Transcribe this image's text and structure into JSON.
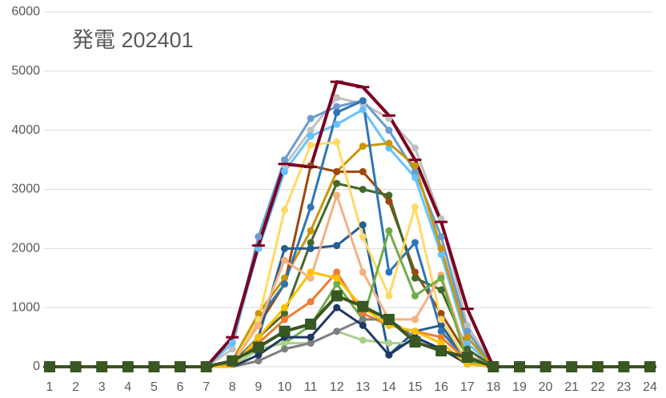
{
  "chart_data": {
    "type": "line",
    "title": "発電 202401",
    "categories": [
      1,
      2,
      3,
      4,
      5,
      6,
      7,
      8,
      9,
      10,
      11,
      12,
      13,
      14,
      15,
      16,
      17,
      18,
      19,
      20,
      21,
      22,
      23,
      24
    ],
    "ylim": [
      0,
      6000
    ],
    "yticks": [
      0,
      1000,
      2000,
      3000,
      4000,
      5000,
      6000
    ],
    "grid": true,
    "series": [
      {
        "color": "#c0c0c0",
        "marker": "circle",
        "values": [
          0,
          0,
          0,
          0,
          0,
          0,
          0,
          300,
          2200,
          3400,
          4000,
          4550,
          4450,
          4200,
          3700,
          2500,
          700,
          0,
          0,
          0,
          0,
          0,
          0,
          0
        ]
      },
      {
        "color": "#6a9bd1",
        "marker": "circle",
        "values": [
          0,
          0,
          0,
          0,
          0,
          0,
          0,
          400,
          2200,
          3500,
          4200,
          4400,
          4500,
          4000,
          3300,
          2200,
          600,
          0,
          0,
          0,
          0,
          0,
          0,
          0
        ]
      },
      {
        "color": "#66c2ff",
        "marker": "circle",
        "values": [
          0,
          0,
          0,
          0,
          0,
          0,
          0,
          400,
          2000,
          3300,
          3900,
          4100,
          4350,
          3700,
          3200,
          1900,
          400,
          0,
          0,
          0,
          0,
          0,
          0,
          0
        ]
      },
      {
        "color": "#c99700",
        "marker": "circle",
        "values": [
          0,
          0,
          0,
          0,
          0,
          0,
          0,
          100,
          900,
          1500,
          2300,
          3300,
          3730,
          3780,
          3400,
          2000,
          500,
          0,
          0,
          0,
          0,
          0,
          0,
          0
        ]
      },
      {
        "color": "#9e480e",
        "marker": "circle",
        "values": [
          0,
          0,
          0,
          0,
          0,
          0,
          0,
          100,
          700,
          1400,
          3400,
          3300,
          3300,
          2800,
          1600,
          900,
          200,
          0,
          0,
          0,
          0,
          0,
          0,
          0
        ]
      },
      {
        "color": "#43682b",
        "marker": "circle",
        "values": [
          0,
          0,
          0,
          0,
          0,
          0,
          0,
          50,
          500,
          900,
          2100,
          3100,
          3000,
          2900,
          1500,
          1300,
          300,
          0,
          0,
          0,
          0,
          0,
          0,
          0
        ]
      },
      {
        "color": "#255e91",
        "marker": "circle",
        "values": [
          0,
          0,
          0,
          0,
          0,
          0,
          0,
          50,
          500,
          2000,
          2000,
          2050,
          2400,
          200,
          600,
          700,
          100,
          0,
          0,
          0,
          0,
          0,
          0,
          0
        ]
      },
      {
        "color": "#2e75b6",
        "marker": "circle",
        "values": [
          0,
          0,
          0,
          0,
          0,
          0,
          0,
          50,
          800,
          1400,
          2700,
          4300,
          4500,
          1600,
          2100,
          600,
          100,
          0,
          0,
          0,
          0,
          0,
          0,
          0
        ]
      },
      {
        "color": "#ffd966",
        "marker": "circle",
        "values": [
          0,
          0,
          0,
          0,
          0,
          0,
          0,
          50,
          800,
          2650,
          3750,
          3800,
          2200,
          1200,
          2700,
          800,
          100,
          0,
          0,
          0,
          0,
          0,
          0,
          0
        ]
      },
      {
        "color": "#f4b183",
        "marker": "circle",
        "values": [
          0,
          0,
          0,
          0,
          0,
          0,
          0,
          50,
          700,
          1800,
          1500,
          2900,
          1600,
          800,
          800,
          1550,
          200,
          0,
          0,
          0,
          0,
          0,
          0,
          0
        ]
      },
      {
        "color": "#ed7d31",
        "marker": "circle",
        "values": [
          0,
          0,
          0,
          0,
          0,
          0,
          0,
          50,
          400,
          800,
          1100,
          1600,
          900,
          700,
          600,
          500,
          100,
          0,
          0,
          0,
          0,
          0,
          0,
          0
        ]
      },
      {
        "color": "#70ad47",
        "marker": "circle",
        "values": [
          0,
          0,
          0,
          0,
          0,
          0,
          0,
          0,
          300,
          400,
          700,
          1400,
          800,
          2300,
          1200,
          1500,
          100,
          0,
          0,
          0,
          0,
          0,
          0,
          0
        ]
      },
      {
        "color": "#a9d18e",
        "marker": "circle",
        "values": [
          0,
          0,
          0,
          0,
          0,
          0,
          0,
          0,
          300,
          400,
          400,
          600,
          450,
          400,
          400,
          300,
          50,
          0,
          0,
          0,
          0,
          0,
          0,
          0
        ]
      },
      {
        "color": "#7f7f7f",
        "marker": "circle",
        "values": [
          0,
          0,
          0,
          0,
          0,
          0,
          0,
          0,
          100,
          300,
          400,
          600,
          800,
          800,
          500,
          300,
          50,
          0,
          0,
          0,
          0,
          0,
          0,
          0
        ]
      },
      {
        "color": "#1f3864",
        "marker": "circle",
        "values": [
          0,
          0,
          0,
          0,
          0,
          0,
          0,
          0,
          200,
          500,
          500,
          1000,
          700,
          200,
          500,
          300,
          50,
          0,
          0,
          0,
          0,
          0,
          0,
          0
        ]
      },
      {
        "color": "#ffc000",
        "marker": "circle",
        "values": [
          0,
          0,
          0,
          0,
          0,
          0,
          0,
          0,
          500,
          1000,
          1600,
          1500,
          1000,
          700,
          600,
          400,
          50,
          0,
          0,
          0,
          0,
          0,
          0,
          0
        ]
      },
      {
        "color": "#7b0020",
        "marker": "dash",
        "values": [
          0,
          0,
          0,
          0,
          0,
          0,
          0,
          500,
          2050,
          3430,
          3380,
          4820,
          4730,
          4250,
          3500,
          2450,
          980,
          0,
          0,
          0,
          0,
          0,
          0,
          0
        ]
      },
      {
        "color": "#385723",
        "marker": "square",
        "values": [
          0,
          0,
          0,
          0,
          0,
          0,
          0,
          100,
          330,
          600,
          720,
          1200,
          1020,
          800,
          420,
          270,
          160,
          0,
          0,
          0,
          0,
          0,
          0,
          0
        ]
      }
    ]
  }
}
